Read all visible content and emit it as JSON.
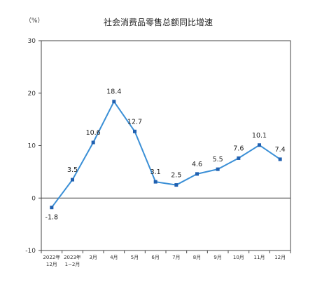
{
  "chart_data": {
    "type": "line",
    "title": "社会消费品零售总额同比增速",
    "unit_label": "（%）",
    "xlabel": "",
    "ylabel": "",
    "ylim": [
      -10,
      30
    ],
    "yticks": [
      -10,
      0,
      10,
      20,
      30
    ],
    "grid": false,
    "categories": [
      [
        "2022年",
        "12月"
      ],
      [
        "2023年",
        "1−2月"
      ],
      [
        "3月"
      ],
      [
        "4月"
      ],
      [
        "5月"
      ],
      [
        "6月"
      ],
      [
        "7月"
      ],
      [
        "8月"
      ],
      [
        "9月"
      ],
      [
        "10月"
      ],
      [
        "11月"
      ],
      [
        "12月"
      ]
    ],
    "values": [
      -1.8,
      3.5,
      10.6,
      18.4,
      12.7,
      3.1,
      2.5,
      4.6,
      5.5,
      7.6,
      10.1,
      7.4
    ],
    "data_labels": [
      "-1.8",
      "3.5",
      "10.6",
      "18.4",
      "12.7",
      "3.1",
      "2.5",
      "4.6",
      "5.5",
      "7.6",
      "10.1",
      "7.4"
    ],
    "line_color": "#3a8fd6",
    "marker_color": "#2060b0",
    "axis_color": "#444444"
  }
}
